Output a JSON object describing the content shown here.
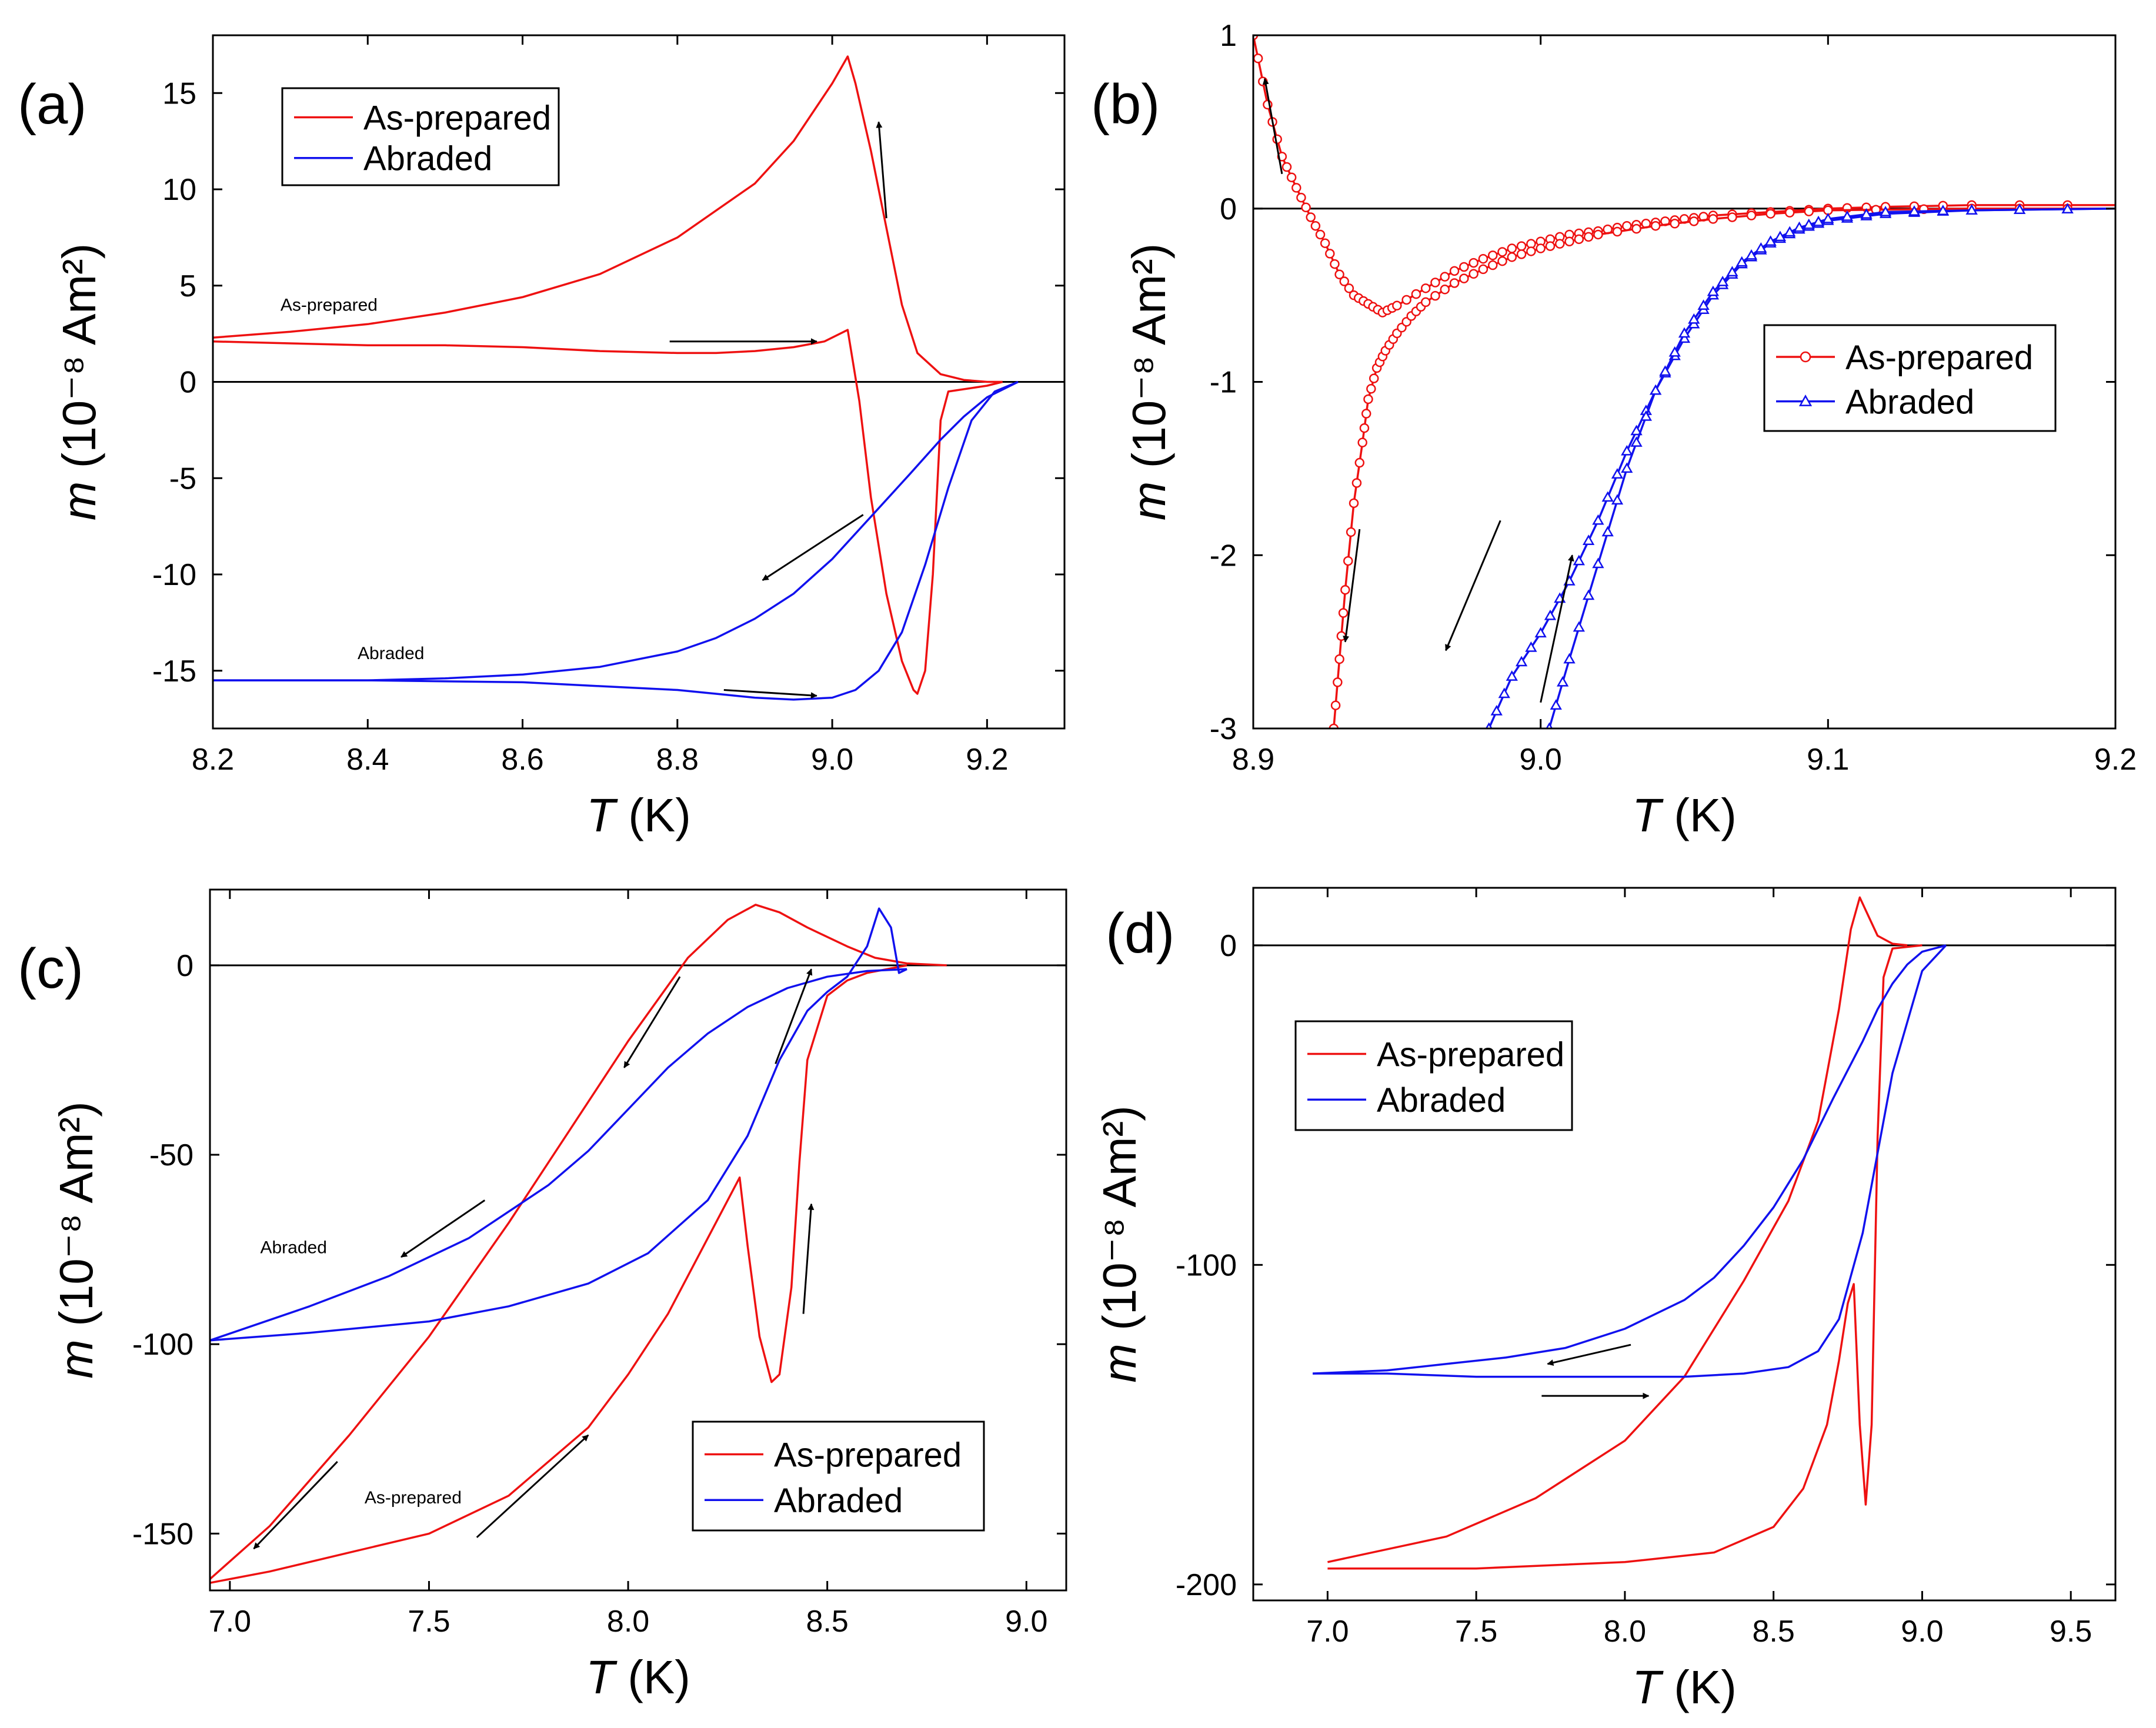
{
  "chart_data": [
    {
      "panel": "(a)",
      "type": "line",
      "xlabel_var": "T",
      "xlabel_unit": "(K)",
      "ylabel_var": "m",
      "ylabel_unit": "(10⁻⁸ Am²)",
      "xlim": [
        8.2,
        9.3
      ],
      "ylim": [
        -18,
        18
      ],
      "xticks": [
        8.2,
        8.4,
        8.6,
        8.8,
        9.0,
        9.2
      ],
      "xtick_labels": [
        "8.2",
        "8.4",
        "8.6",
        "8.8",
        "9.0",
        "9.2"
      ],
      "yticks": [
        -15,
        -10,
        -5,
        0,
        5,
        10,
        15
      ],
      "ytick_labels": [
        "-15",
        "-10",
        "-5",
        "0",
        "5",
        "10",
        "15"
      ],
      "zero_line": true,
      "legend": {
        "position": "top-left",
        "entries": [
          "As-prepared",
          "Abraded"
        ]
      },
      "annotations": [
        {
          "text": "As-prepared",
          "x": 8.35,
          "y": 3.7
        },
        {
          "text": "Abraded",
          "x": 8.43,
          "y": -14.4
        }
      ],
      "arrows": [
        [
          9.07,
          8.5,
          9.06,
          13.5
        ],
        [
          8.79,
          2.1,
          8.98,
          2.1
        ],
        [
          9.04,
          -6.9,
          8.91,
          -10.3
        ],
        [
          8.86,
          -16.0,
          8.98,
          -16.3
        ]
      ],
      "series": [
        {
          "name": "As-prepared",
          "color": "#ee1111",
          "marker": "none",
          "x": [
            8.2,
            8.3,
            8.4,
            8.5,
            8.6,
            8.7,
            8.8,
            8.85,
            8.9,
            8.95,
            8.99,
            9.02,
            9.035,
            9.05,
            9.07,
            9.09,
            9.105,
            9.11,
            9.12,
            9.13,
            9.14,
            9.15,
            9.2,
            9.22
          ],
          "y": [
            2.1,
            2.0,
            1.9,
            1.9,
            1.8,
            1.6,
            1.5,
            1.5,
            1.6,
            1.8,
            2.1,
            2.7,
            -1.0,
            -6.0,
            -11.0,
            -14.5,
            -16.0,
            -16.2,
            -15.0,
            -10.0,
            -2.0,
            -0.5,
            -0.2,
            0.0
          ]
        },
        {
          "name": "As-prepared",
          "color": "#ee1111",
          "marker": "none",
          "x": [
            9.22,
            9.2,
            9.17,
            9.14,
            9.11,
            9.09,
            9.07,
            9.05,
            9.03,
            9.02,
            9.0,
            8.95,
            8.9,
            8.8,
            8.7,
            8.6,
            8.5,
            8.4,
            8.3,
            8.2
          ],
          "y": [
            0.0,
            0.0,
            0.1,
            0.4,
            1.5,
            4.0,
            8.0,
            12.0,
            15.5,
            16.9,
            15.5,
            12.5,
            10.3,
            7.5,
            5.6,
            4.4,
            3.6,
            3.0,
            2.6,
            2.3
          ]
        },
        {
          "name": "Abraded",
          "color": "#1111ee",
          "marker": "none",
          "x": [
            8.2,
            8.4,
            8.6,
            8.7,
            8.8,
            8.85,
            8.9,
            8.95,
            9.0,
            9.03,
            9.06,
            9.09,
            9.12,
            9.15,
            9.18,
            9.21,
            9.24
          ],
          "y": [
            -15.5,
            -15.5,
            -15.6,
            -15.8,
            -16.0,
            -16.2,
            -16.4,
            -16.5,
            -16.4,
            -16.0,
            -15.0,
            -13.0,
            -9.5,
            -5.5,
            -2.0,
            -0.5,
            0.0
          ]
        },
        {
          "name": "Abraded",
          "color": "#1111ee",
          "marker": "none",
          "x": [
            9.24,
            9.2,
            9.17,
            9.14,
            9.1,
            9.05,
            9.0,
            8.95,
            8.9,
            8.85,
            8.8,
            8.7,
            8.6,
            8.5,
            8.4,
            8.3,
            8.2
          ],
          "y": [
            0.0,
            -0.8,
            -1.8,
            -3.0,
            -4.8,
            -7.0,
            -9.2,
            -11.0,
            -12.3,
            -13.3,
            -14.0,
            -14.8,
            -15.2,
            -15.4,
            -15.5,
            -15.5,
            -15.5
          ]
        }
      ]
    },
    {
      "panel": "(b)",
      "type": "line",
      "xlabel_var": "T",
      "xlabel_unit": "(K)",
      "ylabel_var": "m",
      "ylabel_unit": "(10⁻⁸ Am²)",
      "xlim": [
        8.9,
        9.2
      ],
      "ylim": [
        -3,
        1
      ],
      "xticks": [
        8.9,
        9.0,
        9.1,
        9.2
      ],
      "xtick_labels": [
        "8.9",
        "9.0",
        "9.1",
        "9.2"
      ],
      "yticks": [
        -3,
        -2,
        -1,
        0,
        1
      ],
      "ytick_labels": [
        "-3",
        "-2",
        "-1",
        "0",
        "1"
      ],
      "zero_line": true,
      "legend": {
        "position": "center-right",
        "entries": [
          "As-prepared",
          "Abraded"
        ]
      },
      "annotations": [],
      "arrows": [
        [
          8.91,
          0.2,
          8.904,
          0.75
        ],
        [
          8.937,
          -1.85,
          8.932,
          -2.5
        ],
        [
          8.986,
          -1.8,
          8.967,
          -2.55
        ],
        [
          9.0,
          -2.85,
          9.011,
          -2.0
        ]
      ],
      "series": [
        {
          "name": "As-prepared",
          "color": "#ee1111",
          "marker": "circle",
          "x": [
            8.9,
            8.905,
            8.91,
            8.915,
            8.92,
            8.925,
            8.93,
            8.935,
            8.94,
            8.945,
            8.95,
            8.96,
            8.97,
            8.98,
            8.99,
            9.0,
            9.01,
            9.02,
            9.03,
            9.04,
            9.05,
            9.06,
            9.08,
            9.1,
            9.12,
            9.15,
            9.2
          ],
          "y": [
            1.0,
            0.6,
            0.3,
            0.12,
            -0.05,
            -0.2,
            -0.38,
            -0.5,
            -0.55,
            -0.6,
            -0.56,
            -0.46,
            -0.36,
            -0.29,
            -0.23,
            -0.19,
            -0.15,
            -0.13,
            -0.1,
            -0.08,
            -0.06,
            -0.04,
            -0.02,
            0.0,
            0.01,
            0.02,
            0.02
          ]
        },
        {
          "name": "As-prepared",
          "color": "#ee1111",
          "marker": "circle",
          "x": [
            8.928,
            8.93,
            8.932,
            8.935,
            8.938,
            8.94,
            8.943,
            8.946,
            8.95,
            8.955,
            8.96,
            8.97,
            8.98,
            8.99,
            9.0,
            9.01,
            9.02,
            9.04,
            9.06,
            9.08,
            9.1,
            9.15,
            9.2
          ],
          "y": [
            -3.0,
            -2.6,
            -2.2,
            -1.7,
            -1.35,
            -1.1,
            -0.92,
            -0.82,
            -0.72,
            -0.62,
            -0.54,
            -0.43,
            -0.35,
            -0.28,
            -0.23,
            -0.19,
            -0.15,
            -0.1,
            -0.06,
            -0.03,
            -0.01,
            0.0,
            0.0
          ]
        },
        {
          "name": "Abraded",
          "color": "#1111ee",
          "marker": "triangle",
          "x": [
            8.982,
            8.99,
            9.0,
            9.01,
            9.02,
            9.03,
            9.04,
            9.05,
            9.06,
            9.07,
            9.08,
            9.09,
            9.1,
            9.12,
            9.15,
            9.2
          ],
          "y": [
            -3.0,
            -2.7,
            -2.45,
            -2.15,
            -1.8,
            -1.4,
            -1.05,
            -0.75,
            -0.5,
            -0.32,
            -0.2,
            -0.12,
            -0.07,
            -0.03,
            -0.01,
            0.0
          ]
        },
        {
          "name": "Abraded",
          "color": "#1111ee",
          "marker": "triangle",
          "x": [
            9.003,
            9.01,
            9.02,
            9.03,
            9.04,
            9.05,
            9.06,
            9.07,
            9.08,
            9.09,
            9.1,
            9.12,
            9.15,
            9.2
          ],
          "y": [
            -3.0,
            -2.6,
            -2.05,
            -1.5,
            -1.05,
            -0.72,
            -0.48,
            -0.31,
            -0.19,
            -0.11,
            -0.06,
            -0.02,
            -0.01,
            0.0
          ]
        }
      ]
    },
    {
      "panel": "(c)",
      "type": "line",
      "xlabel_var": "T",
      "xlabel_unit": "(K)",
      "ylabel_var": "m",
      "ylabel_unit": "(10⁻⁸ Am²)",
      "xlim": [
        6.95,
        9.1
      ],
      "ylim": [
        -165,
        20
      ],
      "xticks": [
        7.0,
        7.5,
        8.0,
        8.5,
        9.0
      ],
      "xtick_labels": [
        "7.0",
        "7.5",
        "8.0",
        "8.5",
        "9.0"
      ],
      "yticks": [
        -150,
        -100,
        -50,
        0
      ],
      "ytick_labels": [
        "-150",
        "-100",
        "-50",
        "0"
      ],
      "zero_line": true,
      "legend": {
        "position": "bottom-right",
        "entries": [
          "As-prepared",
          "Abraded"
        ]
      },
      "annotations": [
        {
          "text": "Abraded",
          "x": 7.16,
          "y": -76
        },
        {
          "text": "As-prepared",
          "x": 7.46,
          "y": -142
        }
      ],
      "arrows": [
        [
          7.64,
          -62,
          7.43,
          -77
        ],
        [
          8.13,
          -3,
          7.99,
          -27
        ],
        [
          8.37,
          -26,
          8.46,
          -1
        ],
        [
          8.44,
          -92,
          8.46,
          -63
        ],
        [
          7.27,
          -131,
          7.06,
          -154
        ],
        [
          7.62,
          -151,
          7.9,
          -124
        ]
      ],
      "series": [
        {
          "name": "As-prepared",
          "color": "#ee1111",
          "marker": "none",
          "x": [
            6.95,
            7.1,
            7.3,
            7.5,
            7.7,
            7.9,
            8.0,
            8.1,
            8.2,
            8.25,
            8.28,
            8.3,
            8.33,
            8.36,
            8.38,
            8.41,
            8.43,
            8.45,
            8.5,
            8.55,
            8.6,
            8.65,
            8.7
          ],
          "y": [
            -163,
            -160,
            -155,
            -150,
            -140,
            -122,
            -108,
            -92,
            -72,
            -62,
            -56,
            -74,
            -98,
            -110,
            -108,
            -85,
            -52,
            -25,
            -8,
            -4,
            -2,
            -1,
            0
          ]
        },
        {
          "name": "As-prepared",
          "color": "#ee1111",
          "marker": "none",
          "x": [
            8.8,
            8.7,
            8.62,
            8.55,
            8.45,
            8.38,
            8.32,
            8.25,
            8.15,
            8.0,
            7.85,
            7.7,
            7.5,
            7.3,
            7.1,
            6.95
          ],
          "y": [
            0,
            0.5,
            2,
            5,
            10,
            14,
            16,
            12,
            2,
            -20,
            -44,
            -68,
            -98,
            -124,
            -148,
            -162
          ]
        },
        {
          "name": "Abraded",
          "color": "#1111ee",
          "marker": "none",
          "x": [
            6.95,
            7.2,
            7.5,
            7.7,
            7.9,
            8.05,
            8.2,
            8.3,
            8.38,
            8.45,
            8.5,
            8.55,
            8.6,
            8.63,
            8.66,
            8.68,
            8.7
          ],
          "y": [
            -99,
            -97,
            -94,
            -90,
            -84,
            -76,
            -62,
            -45,
            -25,
            -12,
            -7,
            -3,
            5,
            15,
            10,
            -2,
            -1
          ]
        },
        {
          "name": "Abraded",
          "color": "#1111ee",
          "marker": "none",
          "x": [
            8.7,
            8.6,
            8.5,
            8.4,
            8.3,
            8.2,
            8.1,
            8.0,
            7.9,
            7.8,
            7.6,
            7.4,
            7.2,
            6.95
          ],
          "y": [
            -1,
            -1.5,
            -3,
            -6,
            -11,
            -18,
            -27,
            -38,
            -49,
            -58,
            -72,
            -82,
            -90,
            -99
          ]
        }
      ]
    },
    {
      "panel": "(d)",
      "type": "line",
      "xlabel_var": "T",
      "xlabel_unit": "(K)",
      "ylabel_var": "m",
      "ylabel_unit": "(10⁻⁸ Am²)",
      "xlim": [
        6.75,
        9.65
      ],
      "ylim": [
        -205,
        18
      ],
      "xticks": [
        7.0,
        7.5,
        8.0,
        8.5,
        9.0,
        9.5
      ],
      "xtick_labels": [
        "7.0",
        "7.5",
        "8.0",
        "8.5",
        "9.0",
        "9.5"
      ],
      "yticks": [
        -200,
        -100,
        0
      ],
      "ytick_labels": [
        "-200",
        "-100",
        "0"
      ],
      "zero_line": true,
      "legend": {
        "position": "top-left",
        "entries": [
          "As-prepared",
          "Abraded"
        ]
      },
      "annotations": [],
      "arrows": [
        [
          8.02,
          -125,
          7.74,
          -131
        ],
        [
          7.72,
          -141,
          8.08,
          -141
        ]
      ],
      "series": [
        {
          "name": "As-prepared",
          "color": "#ee1111",
          "marker": "none",
          "x": [
            7.0,
            7.5,
            8.0,
            8.3,
            8.5,
            8.6,
            8.68,
            8.72,
            8.75,
            8.77,
            8.79,
            8.81,
            8.83,
            8.85,
            8.87,
            8.9,
            9.0
          ],
          "y": [
            -195,
            -195,
            -193,
            -190,
            -182,
            -170,
            -150,
            -130,
            -112,
            -106,
            -150,
            -175,
            -150,
            -60,
            -10,
            -1,
            0
          ]
        },
        {
          "name": "As-prepared",
          "color": "#ee1111",
          "marker": "none",
          "x": [
            8.95,
            8.9,
            8.85,
            8.82,
            8.79,
            8.76,
            8.72,
            8.65,
            8.55,
            8.4,
            8.2,
            8.0,
            7.7,
            7.4,
            7.0
          ],
          "y": [
            0,
            0.5,
            3,
            9,
            15,
            5,
            -20,
            -55,
            -80,
            -105,
            -135,
            -155,
            -173,
            -185,
            -193
          ]
        },
        {
          "name": "Abraded",
          "color": "#1111ee",
          "marker": "none",
          "x": [
            6.95,
            7.2,
            7.5,
            7.8,
            8.0,
            8.2,
            8.4,
            8.55,
            8.65,
            8.72,
            8.8,
            8.9,
            9.0,
            9.08
          ],
          "y": [
            -134,
            -134,
            -135,
            -135,
            -135,
            -135,
            -134,
            -132,
            -127,
            -117,
            -90,
            -40,
            -8,
            0
          ]
        },
        {
          "name": "Abraded",
          "color": "#1111ee",
          "marker": "none",
          "x": [
            9.08,
            9.0,
            8.95,
            8.9,
            8.85,
            8.8,
            8.7,
            8.6,
            8.5,
            8.4,
            8.3,
            8.2,
            8.0,
            7.8,
            7.6,
            7.4,
            7.2,
            6.95
          ],
          "y": [
            0,
            -2,
            -6,
            -12,
            -20,
            -30,
            -48,
            -67,
            -82,
            -94,
            -104,
            -111,
            -120,
            -126,
            -129,
            -131,
            -133,
            -134
          ]
        }
      ]
    }
  ]
}
